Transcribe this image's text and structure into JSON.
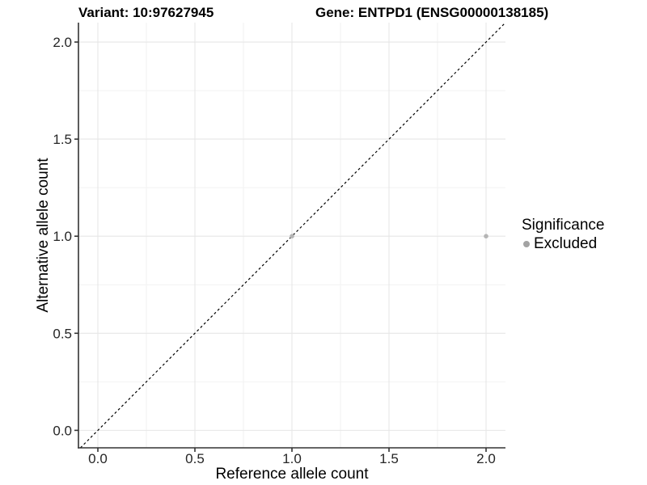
{
  "header": {
    "variant_title": "Variant: 10:97627945",
    "gene_title": "Gene: ENTPD1 (ENSG00000138185)"
  },
  "legend": {
    "title": "Significance",
    "items": [
      {
        "label": "Excluded",
        "color": "#a3a3a3",
        "shape": "circle"
      }
    ]
  },
  "chart_data": {
    "type": "scatter",
    "title": "Variant: 10:97627945 — Gene: ENTPD1 (ENSG00000138185)",
    "xlabel": "Reference allele count",
    "ylabel": "Alternative allele count",
    "xlim": [
      -0.1,
      2.1
    ],
    "ylim": [
      -0.09,
      2.1
    ],
    "x_ticks": [
      0,
      0.5,
      1,
      1.5,
      2
    ],
    "y_ticks": [
      0,
      0.5,
      1,
      1.5,
      2
    ],
    "x_tick_labels": [
      "0.0",
      "0.5",
      "1.0",
      "1.5",
      "2.0"
    ],
    "y_tick_labels": [
      "0.0",
      "0.5",
      "1.0",
      "1.5",
      "2.0"
    ],
    "grid": "major+minor",
    "legend_position": "right",
    "series": [
      {
        "name": "Excluded",
        "significance": "Excluded",
        "color": "#b5b5b5",
        "point_radius": 2.8,
        "points": [
          {
            "x": 1.0,
            "y": 1.0
          },
          {
            "x": 2.0,
            "y": 1.0
          }
        ]
      }
    ],
    "reference_line": {
      "type": "identity",
      "equation": "y = x",
      "style": "dashed",
      "color": "#000000"
    }
  },
  "colors": {
    "background": "#ffffff",
    "grid_major": "#e6e6e6",
    "grid_minor": "#f2f2f2",
    "axis": "#333333",
    "tick_label": "#262626",
    "point": "#b5b5b5",
    "legend_key": "#a3a3a3"
  }
}
